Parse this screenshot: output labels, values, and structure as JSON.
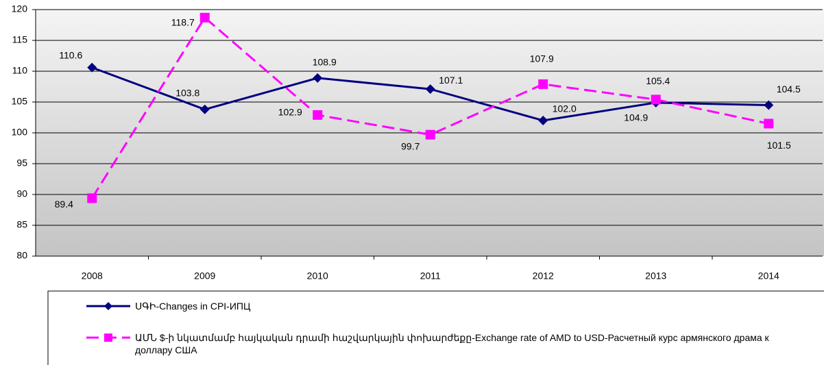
{
  "chart_data": {
    "type": "line",
    "categories": [
      "2008",
      "2009",
      "2010",
      "2011",
      "2012",
      "2013",
      "2014"
    ],
    "series": [
      {
        "name": "ՍԳԻ-Changes in CPI-ИПЦ",
        "color": "#000080",
        "marker": "diamond",
        "dash": "solid",
        "values": [
          110.6,
          103.8,
          108.9,
          107.1,
          102.0,
          104.9,
          104.5
        ],
        "value_labels": [
          "110.6",
          "103.8",
          "108.9",
          "107.1",
          "102.0",
          "104.9",
          "104.5"
        ]
      },
      {
        "name": "ԱՄՆ $-ի նկատմամբ հայկական դրամի հաշվարկային փոխարժեքը-Exchange rate of AMD to USD-Расчетный курс армянского драма к доллару США",
        "color": "#ff00ff",
        "marker": "square",
        "dash": "dashed",
        "values": [
          89.4,
          118.7,
          102.9,
          99.7,
          107.9,
          105.4,
          101.5
        ],
        "value_labels": [
          "89.4",
          "118.7",
          "102.9",
          "99.7",
          "107.9",
          "105.4",
          "101.5"
        ]
      }
    ],
    "ylim": [
      80,
      120
    ],
    "yticks": [
      80,
      85,
      90,
      95,
      100,
      105,
      110,
      115,
      120
    ],
    "grid": true,
    "legend": "bottom"
  }
}
